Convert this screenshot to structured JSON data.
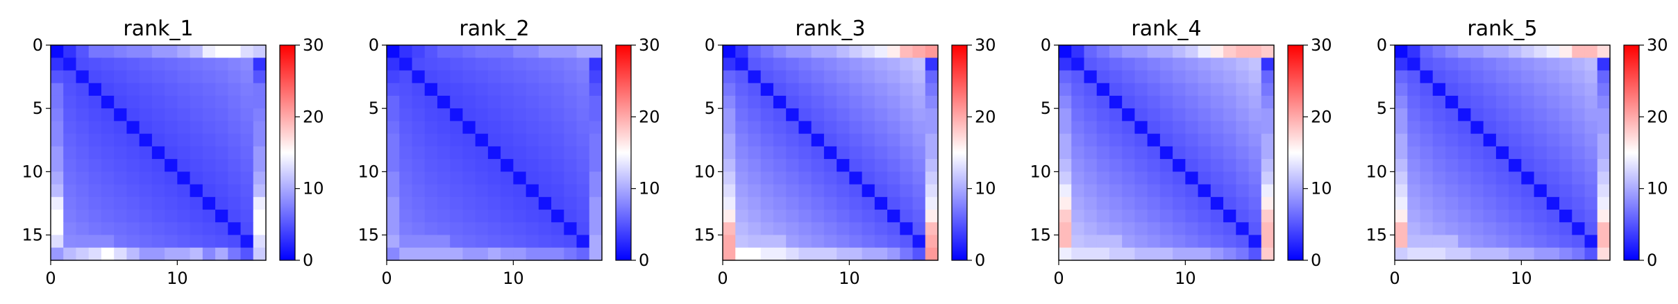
{
  "chart_data": [
    {
      "type": "heatmap",
      "title": "rank_1",
      "size": 17,
      "colormap": "bwr",
      "clim": [
        0,
        30
      ],
      "xticks": [
        0,
        10
      ],
      "yticks": [
        0,
        5,
        10,
        15
      ],
      "colorbar_ticks": [
        0,
        10,
        20,
        30
      ],
      "diag": 1,
      "off_base": 4,
      "off_slope": 0.25,
      "top_row": [
        0.5,
        3.0,
        5.0,
        7.0,
        7.0,
        7.5,
        8.0,
        8.0,
        9.0,
        9.0,
        10.0,
        11.0,
        14.0,
        15.0,
        15.0,
        13.0,
        12.0
      ],
      "bottom_row": [
        9.0,
        11.0,
        12.0,
        13.0,
        15.0,
        13.0,
        11.0,
        9.0,
        9.0,
        10.0,
        10.0,
        11.0,
        8.0,
        10.0,
        7.0,
        5.0,
        3.0
      ],
      "row15_left": 8
    },
    {
      "type": "heatmap",
      "title": "rank_2",
      "size": 17,
      "colormap": "bwr",
      "clim": [
        0,
        30
      ],
      "xticks": [
        0,
        10
      ],
      "yticks": [
        0,
        5,
        10,
        15
      ],
      "colorbar_ticks": [
        0,
        10,
        20,
        30
      ],
      "diag": 1,
      "off_base": 4,
      "off_slope": 0.22,
      "top_row": [
        0.5,
        3.0,
        4.0,
        5.0,
        6.0,
        6.0,
        6.5,
        7.0,
        7.0,
        7.0,
        8.0,
        8.0,
        9.0,
        9.0,
        9.0,
        10.0,
        10.0
      ],
      "bottom_row": [
        8.0,
        10.0,
        10.0,
        10.0,
        10.0,
        10.0,
        9.0,
        9.0,
        10.0,
        9.0,
        9.0,
        8.0,
        8.0,
        8.0,
        7.0,
        6.0,
        4.0
      ],
      "row15_left": 8
    },
    {
      "type": "heatmap",
      "title": "rank_3",
      "size": 17,
      "colormap": "bwr",
      "clim": [
        0,
        30
      ],
      "xticks": [
        0,
        10
      ],
      "yticks": [
        0,
        5,
        10,
        15
      ],
      "colorbar_ticks": [
        0,
        10,
        20,
        30
      ],
      "diag": 1,
      "off_base": 4.5,
      "off_slope": 0.45,
      "top_row": [
        0.5,
        3.0,
        6.0,
        7.0,
        8.0,
        9.0,
        9.0,
        10.0,
        10.0,
        11.0,
        12.0,
        13.0,
        14.0,
        16.0,
        19.0,
        20.0,
        21.0
      ],
      "bottom_row": [
        20.0,
        15.0,
        15.0,
        14.0,
        14.0,
        13.0,
        12.0,
        12.0,
        12.0,
        11.0,
        11.0,
        10.0,
        10.0,
        9.0,
        7.0,
        5.0,
        3.0
      ],
      "row15_left": 11
    },
    {
      "type": "heatmap",
      "title": "rank_4",
      "size": 17,
      "colormap": "bwr",
      "clim": [
        0,
        30
      ],
      "xticks": [
        0,
        10
      ],
      "yticks": [
        0,
        5,
        10,
        15
      ],
      "colorbar_ticks": [
        0,
        10,
        20,
        30
      ],
      "diag": 1,
      "off_base": 4.5,
      "off_slope": 0.45,
      "top_row": [
        0.5,
        3.0,
        6.0,
        7.0,
        8.0,
        9.0,
        9.0,
        10.0,
        10.0,
        11.0,
        12.0,
        14.0,
        16.0,
        18.0,
        19.0,
        19.0,
        18.0
      ],
      "bottom_row": [
        14.0,
        13.0,
        13.0,
        13.0,
        12.0,
        12.0,
        11.0,
        11.0,
        11.0,
        10.0,
        10.0,
        10.0,
        9.0,
        8.0,
        7.0,
        5.0,
        3.0
      ],
      "row15_left": 11
    },
    {
      "type": "heatmap",
      "title": "rank_5",
      "size": 17,
      "colormap": "bwr",
      "clim": [
        0,
        30
      ],
      "xticks": [
        0,
        10
      ],
      "yticks": [
        0,
        5,
        10,
        15
      ],
      "colorbar_ticks": [
        0,
        10,
        20,
        30
      ],
      "diag": 1,
      "off_base": 4.5,
      "off_slope": 0.42,
      "top_row": [
        0.5,
        3.0,
        6.0,
        7.0,
        8.0,
        9.0,
        9.0,
        10.0,
        10.0,
        11.0,
        12.0,
        13.0,
        14.0,
        16.0,
        19.0,
        19.0,
        17.0
      ],
      "bottom_row": [
        12.0,
        13.0,
        13.0,
        13.0,
        12.0,
        12.0,
        11.0,
        11.0,
        11.0,
        10.0,
        10.0,
        9.0,
        9.0,
        8.0,
        7.0,
        5.0,
        3.0
      ],
      "row15_left": 11
    }
  ]
}
